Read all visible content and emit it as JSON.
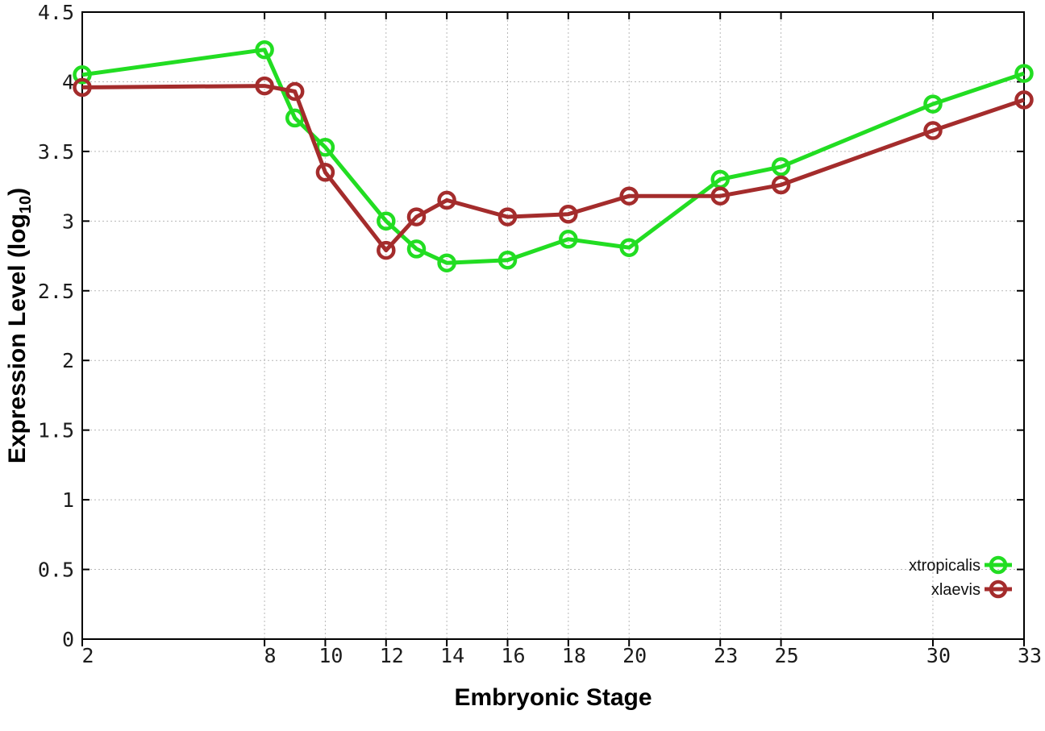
{
  "figure": {
    "background": "#ffffff",
    "border_color": "#000000",
    "grid_color": "#b8b8b8",
    "tick_label_color": "#1c1c1c"
  },
  "titles": {
    "xlabel": "Embryonic Stage",
    "ylabel_prefix": "Expression Level (log",
    "ylabel_sub": "10",
    "ylabel_suffix": ")"
  },
  "chart_data": {
    "type": "line",
    "title": "",
    "xlabel": "Embryonic Stage",
    "ylabel": "Expression Level (log10)",
    "xlim": [
      2,
      33
    ],
    "ylim": [
      0,
      4.5
    ],
    "x_ticks": [
      2,
      8,
      10,
      12,
      14,
      16,
      18,
      20,
      23,
      25,
      30,
      33
    ],
    "y_ticks": [
      0,
      0.5,
      1,
      1.5,
      2,
      2.5,
      3,
      3.5,
      4,
      4.5
    ],
    "grid": true,
    "grid_style": "dotted",
    "legend_position": "bottom-right",
    "marker": "open-circle",
    "line_width": 5,
    "x": [
      2,
      8,
      9,
      10,
      12,
      13,
      14,
      16,
      18,
      20,
      23,
      25,
      30,
      33
    ],
    "series": [
      {
        "name": "xtropicalis",
        "color": "#22dd22",
        "values": [
          4.05,
          4.23,
          3.74,
          3.53,
          3.0,
          2.8,
          2.7,
          2.72,
          2.87,
          2.81,
          3.3,
          3.39,
          3.84,
          4.06
        ]
      },
      {
        "name": "xlaevis",
        "color": "#a42c2c",
        "values": [
          3.96,
          3.97,
          3.93,
          3.35,
          2.79,
          3.03,
          3.15,
          3.03,
          3.05,
          3.18,
          3.18,
          3.26,
          3.65,
          3.87
        ]
      }
    ]
  }
}
